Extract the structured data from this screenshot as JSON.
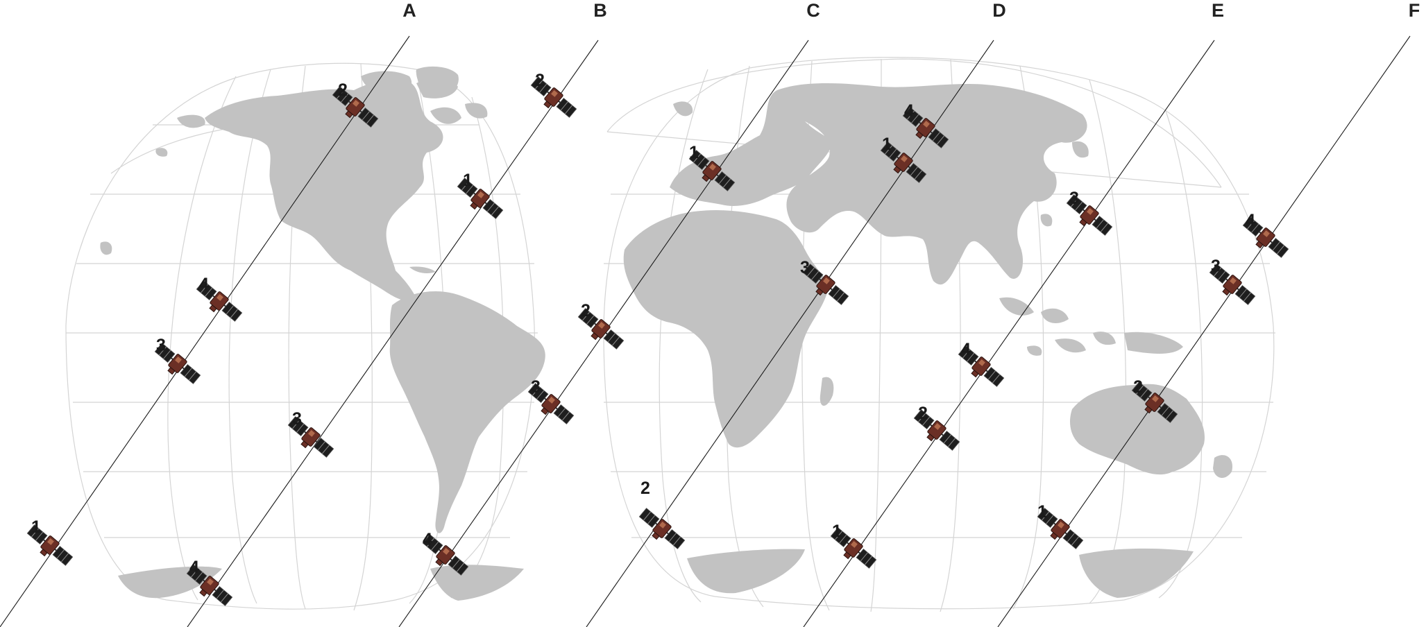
{
  "colors": {
    "land": "#c2c2c2",
    "grid": "#d4d4d4",
    "orbit": "#1a1a1a",
    "satellite_panel": "#1e1e1e",
    "satellite_body": "#6b2f25"
  },
  "orbital_planes": [
    {
      "label": "A",
      "satellites": [
        "1",
        "2",
        "3",
        "4"
      ]
    },
    {
      "label": "B",
      "satellites": [
        "1",
        "2",
        "3",
        "4"
      ]
    },
    {
      "label": "C",
      "satellites": [
        "1",
        "2",
        "3",
        "4"
      ]
    },
    {
      "label": "D",
      "satellites": [
        "1",
        "2",
        "3",
        "4"
      ]
    },
    {
      "label": "E",
      "satellites": [
        "1",
        "2",
        "3",
        "4"
      ]
    },
    {
      "label": "F",
      "satellites": [
        "1",
        "2",
        "3",
        "4"
      ]
    }
  ],
  "icons": {
    "satellite": "satellite-icon"
  }
}
